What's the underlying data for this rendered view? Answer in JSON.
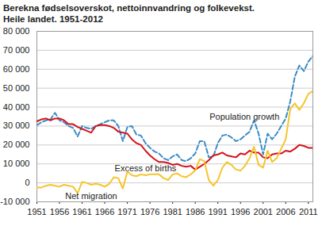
{
  "chart_data": {
    "type": "line",
    "title": "Berekna fødselsoverskot, nettoinnvandring og folkevekst. Heile landet. 1951-2012",
    "x": [
      1951,
      1952,
      1953,
      1954,
      1955,
      1956,
      1957,
      1958,
      1959,
      1960,
      1961,
      1962,
      1963,
      1964,
      1965,
      1966,
      1967,
      1968,
      1969,
      1970,
      1971,
      1972,
      1973,
      1974,
      1975,
      1976,
      1977,
      1978,
      1979,
      1980,
      1981,
      1982,
      1983,
      1984,
      1985,
      1986,
      1987,
      1988,
      1989,
      1990,
      1991,
      1992,
      1993,
      1994,
      1995,
      1996,
      1997,
      1998,
      1999,
      2000,
      2001,
      2002,
      2003,
      2004,
      2005,
      2006,
      2007,
      2008,
      2009,
      2010,
      2011,
      2012
    ],
    "series": [
      {
        "name": "Population growth",
        "color": "#3a8cc4",
        "line_style": "dashed",
        "values": [
          30500,
          32000,
          33000,
          33500,
          37000,
          33000,
          32000,
          30000,
          29000,
          24500,
          30000,
          29000,
          28500,
          30000,
          31000,
          32000,
          33000,
          33000,
          30000,
          22000,
          29500,
          30000,
          25500,
          25000,
          21000,
          18500,
          16500,
          15500,
          13000,
          12000,
          14000,
          15000,
          12000,
          11500,
          13000,
          15500,
          22000,
          22000,
          13500,
          14000,
          21000,
          25000,
          25500,
          24000,
          22000,
          23000,
          25000,
          27000,
          33000,
          26000,
          15000,
          26000,
          23000,
          26000,
          30000,
          34000,
          43000,
          56000,
          62000,
          59000,
          64000,
          67000
        ]
      },
      {
        "name": "Excess of births",
        "color": "#d4121c",
        "line_style": "solid",
        "values": [
          32500,
          33500,
          34000,
          33000,
          34000,
          34000,
          33000,
          31000,
          31000,
          29500,
          28500,
          27500,
          26500,
          30000,
          30500,
          30500,
          30000,
          29000,
          27000,
          26500,
          26000,
          23000,
          21000,
          20000,
          17000,
          14500,
          12500,
          11000,
          11000,
          10500,
          9500,
          10000,
          9000,
          8500,
          9000,
          7000,
          8500,
          10000,
          12000,
          14500,
          15000,
          16000,
          14500,
          14000,
          13500,
          15500,
          15000,
          17000,
          16000,
          16000,
          13500,
          13000,
          15000,
          15500,
          15500,
          17000,
          16500,
          18000,
          20000,
          19500,
          18500,
          18500
        ]
      },
      {
        "name": "Net migration",
        "color": "#f6c42a",
        "line_style": "solid",
        "values": [
          -2500,
          -2500,
          -1500,
          -1000,
          -1500,
          -2000,
          -1000,
          -1500,
          -2000,
          -5500,
          500,
          0,
          -1000,
          -500,
          -1000,
          -2000,
          -500,
          3000,
          2500,
          -3000,
          6000,
          4000,
          3500,
          4500,
          4000,
          4500,
          4500,
          4500,
          2500,
          1500,
          4500,
          5000,
          3500,
          3000,
          4500,
          6500,
          12500,
          11500,
          1500,
          -1500,
          1500,
          8000,
          11000,
          9500,
          7000,
          6500,
          9000,
          13000,
          19000,
          9500,
          8000,
          17000,
          11000,
          13000,
          18000,
          23000,
          39000,
          42000,
          38500,
          42000,
          47000,
          48500
        ]
      }
    ],
    "xlim": [
      1951,
      2012
    ],
    "xticks": [
      1951,
      1956,
      1961,
      1966,
      1971,
      1976,
      1981,
      1986,
      1991,
      1996,
      2001,
      2006,
      2011
    ],
    "ylim": [
      -10000,
      80000
    ],
    "yticks": [
      {
        "value": -10000,
        "label": "-10 000"
      },
      0,
      {
        "value": 10000,
        "label": "10 000"
      },
      {
        "value": 20000,
        "label": "20 000"
      },
      {
        "value": 30000,
        "label": "30 000"
      },
      {
        "value": 40000,
        "label": "40 000"
      },
      {
        "value": 50000,
        "label": "50 000"
      },
      {
        "value": 60000,
        "label": "60 000"
      },
      {
        "value": 70000,
        "label": "70 000"
      },
      {
        "value": 80000,
        "label": "80 000"
      }
    ],
    "grid": true
  }
}
